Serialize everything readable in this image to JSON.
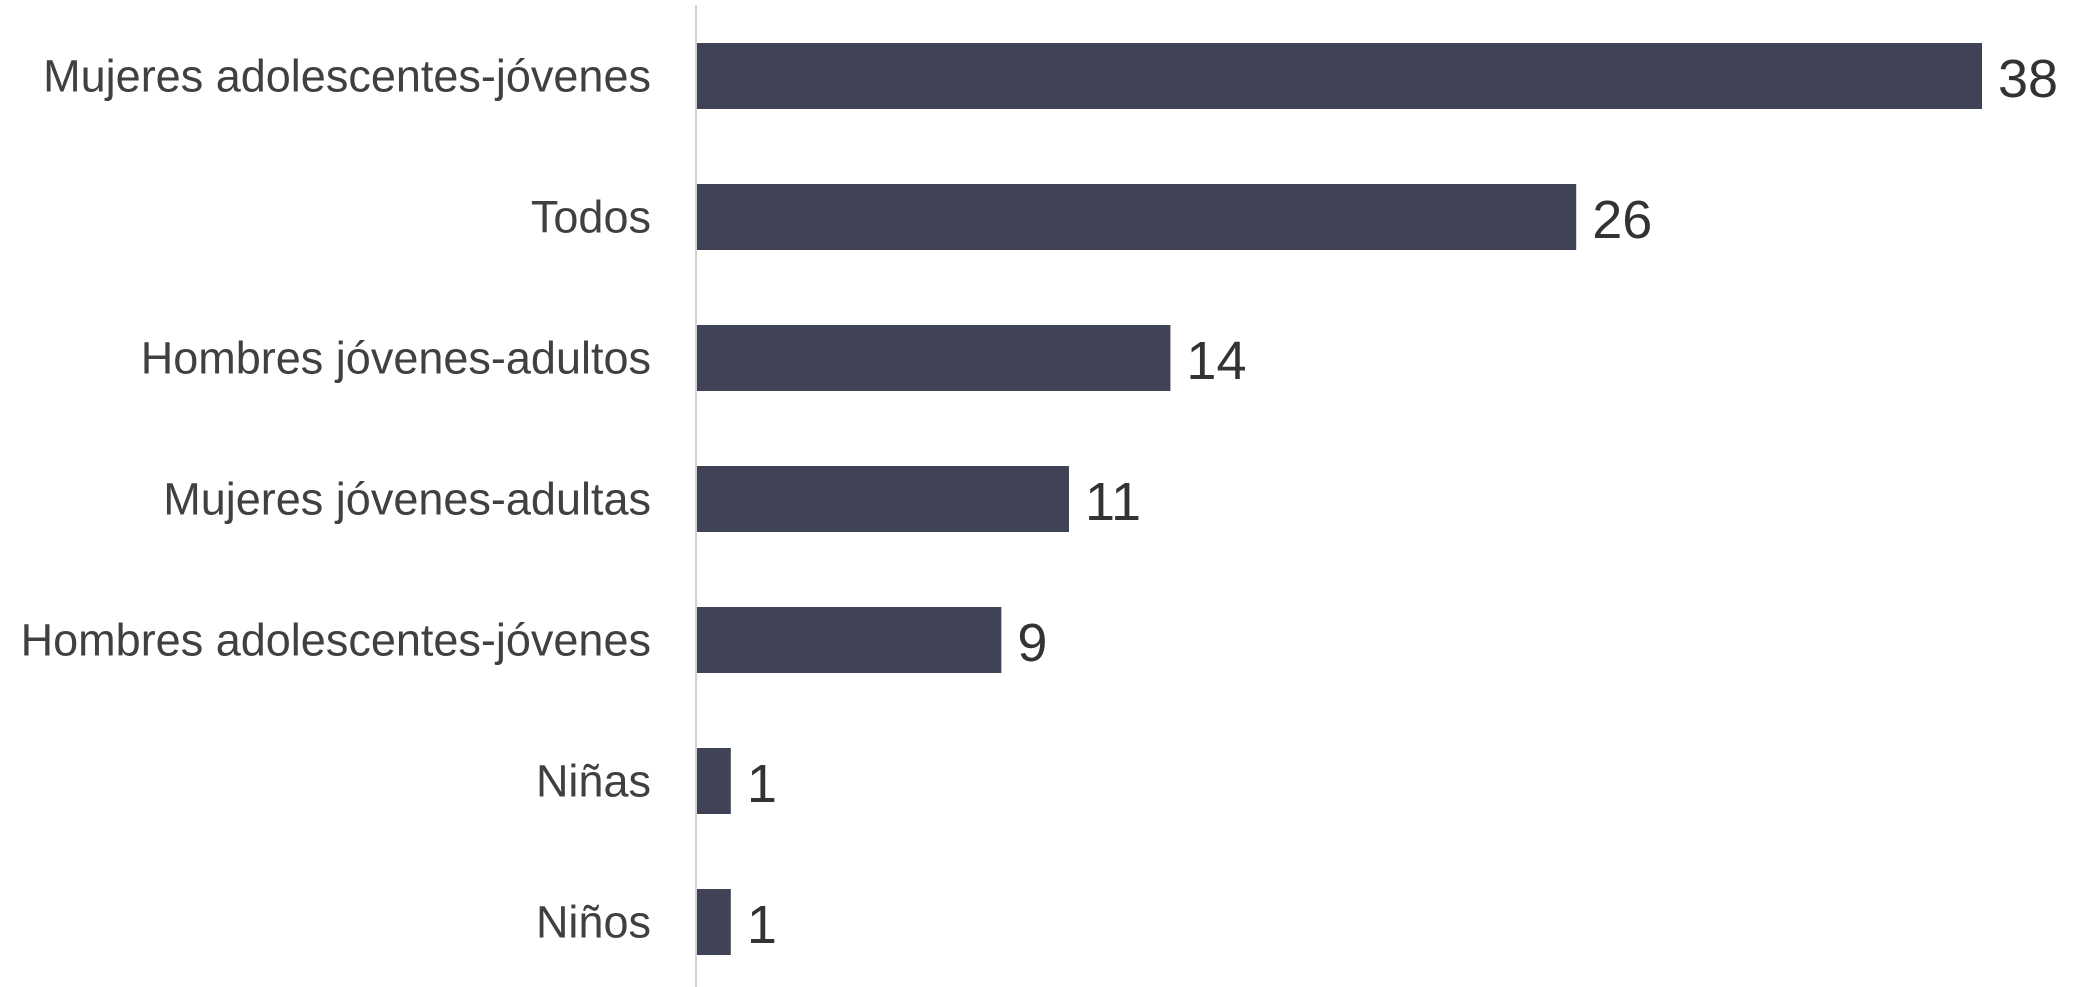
{
  "chart_data": {
    "type": "bar",
    "orientation": "horizontal",
    "categories": [
      "Mujeres adolescentes-jóvenes",
      "Todos",
      "Hombres jóvenes-adultos",
      "Mujeres jóvenes-adultas",
      "Hombres adolescentes-jóvenes",
      "Niñas",
      "Niños"
    ],
    "values": [
      38,
      26,
      14,
      11,
      9,
      1,
      1
    ],
    "value_labels": [
      "38",
      "26",
      "14",
      "11",
      "9",
      "1",
      "1"
    ],
    "title": "",
    "xlabel": "",
    "ylabel": "",
    "xlim": [
      0,
      38
    ],
    "grid": false,
    "legend": "none",
    "bar_color": "#404355",
    "axis_color": "#d0d0d0"
  }
}
